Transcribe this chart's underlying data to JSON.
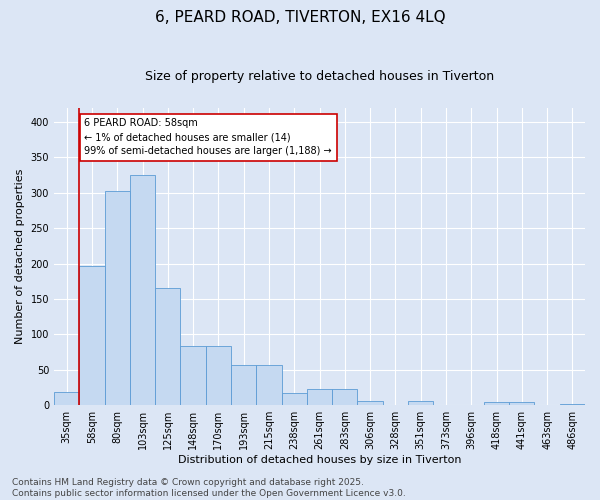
{
  "title": "6, PEARD ROAD, TIVERTON, EX16 4LQ",
  "subtitle": "Size of property relative to detached houses in Tiverton",
  "xlabel": "Distribution of detached houses by size in Tiverton",
  "ylabel": "Number of detached properties",
  "bar_color": "#c5d9f1",
  "bar_edge_color": "#5b9bd5",
  "background_color": "#dce6f5",
  "annotation_text": "6 PEARD ROAD: 58sqm\n← 1% of detached houses are smaller (14)\n99% of semi-detached houses are larger (1,188) →",
  "annotation_box_color": "#ffffff",
  "annotation_box_edge": "#cc0000",
  "vline_color": "#cc0000",
  "vline_x_idx": 1,
  "categories": [
    "35sqm",
    "58sqm",
    "80sqm",
    "103sqm",
    "125sqm",
    "148sqm",
    "170sqm",
    "193sqm",
    "215sqm",
    "238sqm",
    "261sqm",
    "283sqm",
    "306sqm",
    "328sqm",
    "351sqm",
    "373sqm",
    "396sqm",
    "418sqm",
    "441sqm",
    "463sqm",
    "486sqm"
  ],
  "values": [
    18,
    197,
    303,
    325,
    165,
    83,
    83,
    57,
    57,
    17,
    23,
    23,
    6,
    0,
    6,
    0,
    0,
    4,
    4,
    0,
    2
  ],
  "ylim": [
    0,
    420
  ],
  "yticks": [
    0,
    50,
    100,
    150,
    200,
    250,
    300,
    350,
    400
  ],
  "footer": "Contains HM Land Registry data © Crown copyright and database right 2025.\nContains public sector information licensed under the Open Government Licence v3.0.",
  "grid_color": "#ffffff",
  "title_fontsize": 11,
  "subtitle_fontsize": 9,
  "axis_label_fontsize": 8,
  "tick_fontsize": 7,
  "footer_fontsize": 6.5
}
